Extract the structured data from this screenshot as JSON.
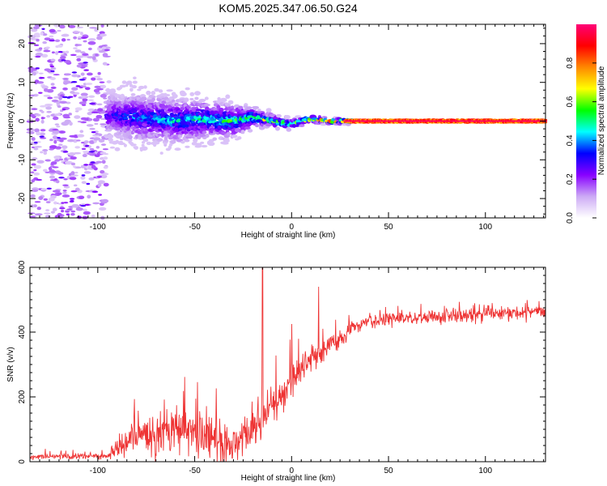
{
  "title": "KOM5.2025.347.06.50.G24",
  "chart_data": [
    {
      "type": "heatmap",
      "title": "KOM5.2025.347.06.50.G24",
      "xlabel": "Height of straight line (km)",
      "ylabel": "Frequency (Hz)",
      "xlim": [
        -135,
        131
      ],
      "ylim": [
        -25,
        25
      ],
      "xticks": [
        -100,
        -50,
        0,
        50,
        100
      ],
      "xtick_labels": [
        "-100",
        "-50",
        "0",
        "50",
        "100"
      ],
      "yticks": [
        -20,
        -10,
        0,
        10,
        20
      ],
      "ytick_labels": [
        "-20",
        "-10",
        "0",
        "10",
        "20"
      ],
      "grid": false,
      "description_of_data": "Noise speckle at all frequencies for height < -95 km; broadband energy around 0 Hz (spread about ±8 Hz) from -95 to -25 km; narrowing wavy line near 0 Hz from -25 to 30 km; steady peak at 0 Hz (amplitude ~1.0) from 30 to 131 km",
      "ridge": {
        "x": [
          -95,
          -80,
          -60,
          -45,
          -30,
          -20,
          -10,
          0,
          10,
          20,
          30,
          50,
          80,
          110,
          131
        ],
        "frequency": [
          1.5,
          1.0,
          0.0,
          0.5,
          0.0,
          1.0,
          0.0,
          -0.8,
          0.5,
          0.0,
          0.0,
          0.0,
          0.0,
          0.0,
          0.0
        ],
        "peak_amplitude": [
          0.3,
          0.4,
          0.45,
          0.5,
          0.55,
          0.6,
          0.6,
          0.65,
          0.7,
          0.8,
          0.9,
          1.0,
          1.0,
          1.0,
          1.0
        ],
        "spread_hz": [
          8,
          8,
          7,
          6,
          5,
          3,
          2,
          1.5,
          1.2,
          1.0,
          0.8,
          0.7,
          0.7,
          0.7,
          0.7
        ]
      },
      "colorbar": {
        "label": "Normalized spectral amplitude",
        "range": [
          0,
          1
        ],
        "ticks": [
          0.0,
          0.2,
          0.4,
          0.6,
          0.8
        ],
        "tick_labels": [
          "0.0",
          "0.2",
          "0.4",
          "0.6",
          "0.8"
        ],
        "colors": [
          "#ffffff",
          "#ccaaf5",
          "#8800ff",
          "#0000ff",
          "#00ffff",
          "#00ff00",
          "#ffff00",
          "#ff8800",
          "#ff0000",
          "#ff0077"
        ]
      }
    },
    {
      "type": "line",
      "xlabel": "Height of straight line (km)",
      "ylabel": "SNR (v/v)",
      "xlim": [
        -135,
        131
      ],
      "ylim": [
        0,
        600
      ],
      "xticks": [
        -100,
        -50,
        0,
        50,
        100
      ],
      "xtick_labels": [
        "-100",
        "-50",
        "0",
        "50",
        "100"
      ],
      "yticks": [
        0,
        200,
        400,
        600
      ],
      "ytick_labels": [
        "0",
        "200",
        "400",
        "600"
      ],
      "grid": false,
      "series": [
        {
          "name": "SNR",
          "color": "#ee3333",
          "envelope_x": [
            -135,
            -95,
            -90,
            -80,
            -70,
            -60,
            -50,
            -40,
            -30,
            -20,
            -15,
            -10,
            -5,
            0,
            5,
            10,
            15,
            20,
            25,
            30,
            40,
            50,
            60,
            70,
            80,
            90,
            100,
            110,
            120,
            131
          ],
          "mean": [
            15,
            18,
            40,
            75,
            85,
            95,
            85,
            70,
            55,
            95,
            140,
            170,
            210,
            250,
            290,
            320,
            340,
            360,
            380,
            410,
            430,
            440,
            445,
            448,
            450,
            452,
            455,
            458,
            462,
            465
          ],
          "noise_amplitude": [
            8,
            10,
            40,
            60,
            70,
            80,
            80,
            75,
            60,
            70,
            80,
            70,
            70,
            60,
            50,
            45,
            40,
            35,
            30,
            28,
            25,
            25,
            25,
            25,
            25,
            25,
            25,
            25,
            25,
            25
          ],
          "spikes": [
            {
              "x": -15,
              "y": 600
            },
            {
              "x": 0,
              "y": 425
            },
            {
              "x": 14,
              "y": 540
            }
          ]
        }
      ]
    }
  ]
}
